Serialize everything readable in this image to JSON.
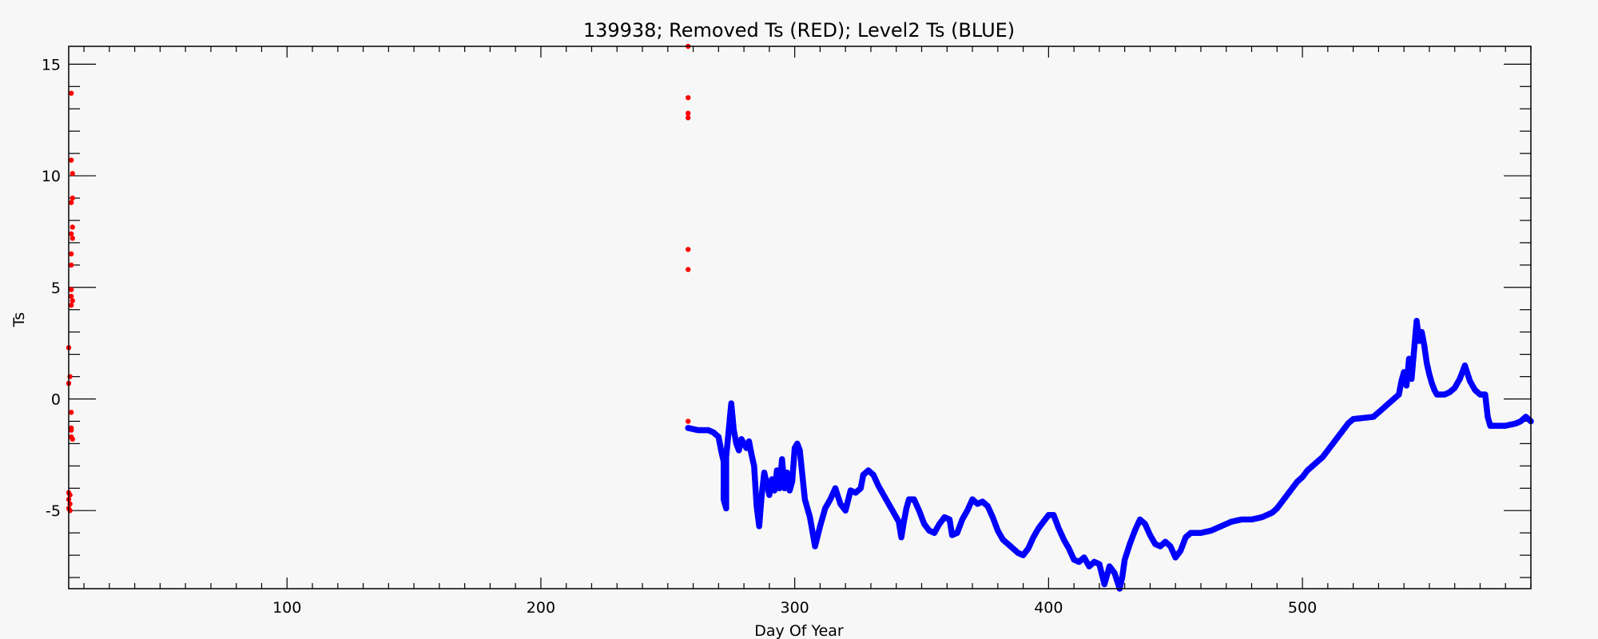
{
  "chart_data": {
    "type": "scatter",
    "title": "139938; Removed Ts (RED); Level2 Ts (BLUE)",
    "xlabel": "Day Of Year",
    "ylabel": "Ts",
    "xlim": [
      14,
      590
    ],
    "ylim": [
      -8.5,
      15.8
    ],
    "x_ticks": [
      100,
      200,
      300,
      400,
      500
    ],
    "x_tick_labels": [
      "100",
      "200",
      "300",
      "400",
      "500"
    ],
    "y_ticks": [
      -5,
      0,
      5,
      10,
      15
    ],
    "y_tick_labels": [
      "-5",
      "0",
      "5",
      "10",
      "15"
    ],
    "grid": false,
    "series": [
      {
        "color": "#ff0000",
        "marker": "dot",
        "points": [
          [
            15,
            13.7
          ],
          [
            15,
            10.7
          ],
          [
            15.5,
            10.1
          ],
          [
            15.5,
            9
          ],
          [
            15,
            8.8
          ],
          [
            15.5,
            7.7
          ],
          [
            15,
            7.4
          ],
          [
            15.5,
            7.2
          ],
          [
            15,
            6.5
          ],
          [
            15,
            6.0
          ],
          [
            15,
            4.9
          ],
          [
            15,
            4.6
          ],
          [
            15.5,
            4.4
          ],
          [
            15,
            4.2
          ],
          [
            14,
            2.3
          ],
          [
            14.5,
            1.0
          ],
          [
            14,
            0.7
          ],
          [
            15,
            -0.6
          ],
          [
            15,
            -1.3
          ],
          [
            15,
            -1.4
          ],
          [
            15,
            -1.7
          ],
          [
            15.5,
            -1.8
          ],
          [
            14,
            -4.2
          ],
          [
            14.5,
            -4.3
          ],
          [
            14,
            -4.5
          ],
          [
            14.5,
            -4.7
          ],
          [
            14,
            -4.9
          ],
          [
            14.5,
            -5.0
          ],
          [
            258,
            15.8
          ],
          [
            258,
            13.5
          ],
          [
            258,
            12.8
          ],
          [
            258,
            12.6
          ],
          [
            258,
            6.7
          ],
          [
            258,
            5.8
          ],
          [
            258,
            -1.0
          ]
        ]
      },
      {
        "color": "#0000ff",
        "marker": "dot",
        "points": [
          [
            258,
            -1.3
          ],
          [
            262,
            -1.4
          ],
          [
            266,
            -1.4
          ],
          [
            268,
            -1.5
          ],
          [
            270,
            -1.7
          ],
          [
            271,
            -2.3
          ],
          [
            272,
            -2.8
          ],
          [
            272,
            -4.5
          ],
          [
            273,
            -4.9
          ],
          [
            273,
            -2.6
          ],
          [
            274,
            -1.4
          ],
          [
            275,
            -0.2
          ],
          [
            276,
            -1.4
          ],
          [
            277,
            -2.0
          ],
          [
            278,
            -2.3
          ],
          [
            279,
            -1.8
          ],
          [
            280,
            -2.0
          ],
          [
            281,
            -2.2
          ],
          [
            282,
            -1.9
          ],
          [
            283,
            -2.5
          ],
          [
            284,
            -3.0
          ],
          [
            285,
            -4.8
          ],
          [
            286,
            -5.7
          ],
          [
            287,
            -4.3
          ],
          [
            288,
            -3.3
          ],
          [
            289,
            -3.8
          ],
          [
            290,
            -4.3
          ],
          [
            291,
            -3.6
          ],
          [
            292,
            -4.1
          ],
          [
            293,
            -3.2
          ],
          [
            294,
            -4.0
          ],
          [
            295,
            -2.7
          ],
          [
            296,
            -4.0
          ],
          [
            297,
            -3.3
          ],
          [
            298,
            -4.1
          ],
          [
            299,
            -3.7
          ],
          [
            300,
            -2.2
          ],
          [
            301,
            -2.0
          ],
          [
            302,
            -2.3
          ],
          [
            304,
            -4.5
          ],
          [
            306,
            -5.3
          ],
          [
            308,
            -6.6
          ],
          [
            310,
            -5.7
          ],
          [
            312,
            -4.9
          ],
          [
            314,
            -4.5
          ],
          [
            316,
            -4.0
          ],
          [
            318,
            -4.7
          ],
          [
            320,
            -5.0
          ],
          [
            322,
            -4.1
          ],
          [
            324,
            -4.2
          ],
          [
            326,
            -4.0
          ],
          [
            327,
            -3.4
          ],
          [
            329,
            -3.2
          ],
          [
            331,
            -3.4
          ],
          [
            333,
            -3.9
          ],
          [
            335,
            -4.3
          ],
          [
            337,
            -4.7
          ],
          [
            339,
            -5.1
          ],
          [
            341,
            -5.5
          ],
          [
            342,
            -6.2
          ],
          [
            343,
            -5.5
          ],
          [
            344,
            -4.9
          ],
          [
            345,
            -4.5
          ],
          [
            347,
            -4.5
          ],
          [
            349,
            -5.0
          ],
          [
            351,
            -5.6
          ],
          [
            353,
            -5.9
          ],
          [
            355,
            -6.0
          ],
          [
            357,
            -5.6
          ],
          [
            359,
            -5.3
          ],
          [
            361,
            -5.4
          ],
          [
            362,
            -6.1
          ],
          [
            364,
            -6.0
          ],
          [
            366,
            -5.4
          ],
          [
            368,
            -5.0
          ],
          [
            370,
            -4.5
          ],
          [
            372,
            -4.7
          ],
          [
            374,
            -4.6
          ],
          [
            376,
            -4.8
          ],
          [
            378,
            -5.3
          ],
          [
            380,
            -5.9
          ],
          [
            382,
            -6.3
          ],
          [
            384,
            -6.5
          ],
          [
            386,
            -6.7
          ],
          [
            388,
            -6.9
          ],
          [
            390,
            -7.0
          ],
          [
            392,
            -6.7
          ],
          [
            394,
            -6.2
          ],
          [
            396,
            -5.8
          ],
          [
            398,
            -5.5
          ],
          [
            400,
            -5.2
          ],
          [
            402,
            -5.2
          ],
          [
            404,
            -5.8
          ],
          [
            406,
            -6.3
          ],
          [
            408,
            -6.7
          ],
          [
            410,
            -7.2
          ],
          [
            412,
            -7.3
          ],
          [
            414,
            -7.1
          ],
          [
            416,
            -7.5
          ],
          [
            418,
            -7.3
          ],
          [
            420,
            -7.4
          ],
          [
            422,
            -8.3
          ],
          [
            424,
            -7.5
          ],
          [
            426,
            -7.8
          ],
          [
            428,
            -8.5
          ],
          [
            429,
            -8.0
          ],
          [
            430,
            -7.2
          ],
          [
            432,
            -6.5
          ],
          [
            434,
            -5.9
          ],
          [
            436,
            -5.4
          ],
          [
            438,
            -5.6
          ],
          [
            440,
            -6.1
          ],
          [
            442,
            -6.5
          ],
          [
            444,
            -6.6
          ],
          [
            446,
            -6.4
          ],
          [
            448,
            -6.6
          ],
          [
            450,
            -7.1
          ],
          [
            452,
            -6.8
          ],
          [
            454,
            -6.2
          ],
          [
            456,
            -6.0
          ],
          [
            460,
            -6.0
          ],
          [
            464,
            -5.9
          ],
          [
            468,
            -5.7
          ],
          [
            472,
            -5.5
          ],
          [
            476,
            -5.4
          ],
          [
            480,
            -5.4
          ],
          [
            484,
            -5.3
          ],
          [
            488,
            -5.1
          ],
          [
            490,
            -4.9
          ],
          [
            492,
            -4.6
          ],
          [
            494,
            -4.3
          ],
          [
            496,
            -4.0
          ],
          [
            498,
            -3.7
          ],
          [
            500,
            -3.5
          ],
          [
            502,
            -3.2
          ],
          [
            504,
            -3.0
          ],
          [
            506,
            -2.8
          ],
          [
            508,
            -2.6
          ],
          [
            510,
            -2.3
          ],
          [
            512,
            -2.0
          ],
          [
            514,
            -1.7
          ],
          [
            516,
            -1.4
          ],
          [
            518,
            -1.1
          ],
          [
            520,
            -0.9
          ],
          [
            524,
            -0.85
          ],
          [
            528,
            -0.8
          ],
          [
            530,
            -0.6
          ],
          [
            532,
            -0.4
          ],
          [
            534,
            -0.2
          ],
          [
            536,
            0.0
          ],
          [
            538,
            0.2
          ],
          [
            539,
            0.8
          ],
          [
            540,
            1.2
          ],
          [
            541,
            0.6
          ],
          [
            542,
            1.8
          ],
          [
            543,
            0.9
          ],
          [
            544,
            2.2
          ],
          [
            545,
            3.5
          ],
          [
            546,
            2.6
          ],
          [
            547,
            3.0
          ],
          [
            548,
            2.4
          ],
          [
            549,
            1.6
          ],
          [
            550,
            1.1
          ],
          [
            551,
            0.7
          ],
          [
            552,
            0.4
          ],
          [
            553,
            0.2
          ],
          [
            554,
            0.2
          ],
          [
            556,
            0.2
          ],
          [
            558,
            0.3
          ],
          [
            560,
            0.5
          ],
          [
            562,
            0.9
          ],
          [
            564,
            1.5
          ],
          [
            566,
            0.8
          ],
          [
            568,
            0.4
          ],
          [
            570,
            0.2
          ],
          [
            572,
            0.2
          ],
          [
            573,
            -0.8
          ],
          [
            574,
            -1.2
          ],
          [
            576,
            -1.2
          ],
          [
            580,
            -1.2
          ],
          [
            584,
            -1.1
          ],
          [
            586,
            -1.0
          ],
          [
            588,
            -0.8
          ],
          [
            590,
            -1.0
          ]
        ]
      }
    ]
  }
}
